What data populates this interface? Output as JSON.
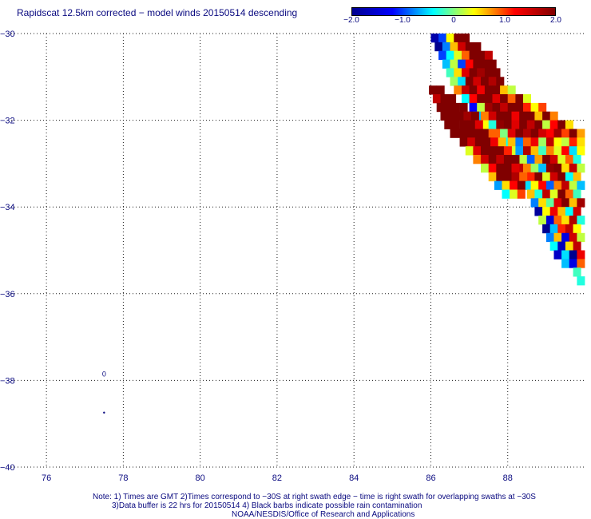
{
  "title": "Rapidscat 12.5km corrected − model winds 20150514 descending",
  "colorbar": {
    "min": -2.0,
    "max": 2.0,
    "tick_labels": [
      "−2.0",
      "−1.0",
      "0",
      "1.0",
      "2.0"
    ],
    "tick_values": [
      -2.0,
      -1.0,
      0,
      1.0,
      2.0
    ],
    "colors": [
      "#00008f",
      "#0000ff",
      "#00ffff",
      "#ffff00",
      "#ff0000",
      "#800000"
    ]
  },
  "notes": {
    "line1": "Note: 1) Times are GMT 2)Times correspond to −30S at right swath edge − time is right swath for overlapping swaths at −30S",
    "line2": "3)Data buffer is 22 hrs for 20150514 4) Black barbs indicate possible rain contamination",
    "line3": "NOAA/NESDIS/Office of Research and Applications"
  },
  "chart_data": {
    "type": "heatmap",
    "title": "Rapidscat 12.5km corrected − model winds 20150514 descending",
    "xlim": [
      75,
      90
    ],
    "ylim": [
      -40,
      -30
    ],
    "x_ticks": [
      76,
      78,
      80,
      82,
      84,
      86,
      88
    ],
    "y_ticks": [
      -30,
      -32,
      -34,
      -36,
      -38,
      -40
    ],
    "x_tick_labels": [
      "76",
      "78",
      "80",
      "82",
      "84",
      "86",
      "88"
    ],
    "y_tick_labels": [
      "−30",
      "−32",
      "−34",
      "−36",
      "−38",
      "−40"
    ],
    "grid": "dotted",
    "value_range": [
      -2.0,
      2.0
    ],
    "swaths": [
      {
        "name": "upper swath",
        "rows": [
          {
            "y": -30.1,
            "x_start": 86.0,
            "values": [
              -1.8,
              -1.0,
              0.4,
              2.0,
              2.0
            ]
          },
          {
            "y": -30.3,
            "x_start": 86.1,
            "values": [
              -2.0,
              -0.8,
              0.6,
              1.5,
              2.0,
              2.0
            ]
          },
          {
            "y": -30.5,
            "x_start": 86.2,
            "values": [
              -1.0,
              -0.4,
              0.3,
              0.9,
              2.0,
              2.0,
              1.6
            ]
          },
          {
            "y": -30.7,
            "x_start": 86.3,
            "values": [
              -0.6,
              0.2,
              -1.0,
              1.2,
              2.0,
              2.0,
              2.0
            ]
          },
          {
            "y": -30.9,
            "x_start": 86.4,
            "values": [
              -0.2,
              0.5,
              1.4,
              2.0,
              1.8,
              2.0,
              2.0
            ]
          },
          {
            "y": -31.1,
            "x_start": 86.5,
            "values": [
              0.1,
              -0.5,
              2.0,
              1.5,
              2.0,
              1.7,
              2.0
            ]
          },
          {
            "y": -31.3,
            "x_start": 86.6,
            "values": [
              0.8,
              1.6,
              2.0,
              1.3,
              2.0,
              2.0,
              0.6,
              0.2
            ]
          },
          {
            "y": -31.5,
            "x_start": 86.8,
            "values": [
              -0.4,
              1.2,
              2.0,
              2.0,
              1.4,
              2.0,
              0.9,
              2.0,
              0.3
            ]
          },
          {
            "y": -31.7,
            "x_start": 87.0,
            "values": [
              -1.2,
              0.2,
              1.8,
              2.0,
              1.6,
              2.0,
              2.0,
              1.1,
              0.4,
              1.0
            ]
          },
          {
            "y": -31.9,
            "x_start": 87.1,
            "values": [
              -0.6,
              0.8,
              1.5,
              2.0,
              2.0,
              1.3,
              2.0,
              2.0,
              0.6,
              2.0,
              0.8
            ]
          },
          {
            "y": -32.1,
            "x_start": 87.3,
            "values": [
              0.4,
              -0.3,
              1.9,
              2.0,
              1.4,
              2.0,
              1.6,
              2.0,
              0.2,
              1.2,
              2.0,
              0.5
            ]
          },
          {
            "y": -32.3,
            "x_start": 87.6,
            "values": [
              0.9,
              0.0,
              1.4,
              2.0,
              1.7,
              2.0,
              1.5,
              1.2,
              1.8,
              1.0,
              2.0,
              0.7,
              1.3
            ]
          },
          {
            "y": -32.5,
            "x_start": 87.8,
            "values": [
              -0.4,
              0.6,
              -0.8,
              0.9,
              1.3,
              0.1,
              1.6,
              0.4,
              0.2,
              1.1,
              0.5,
              -0.1,
              2.0
            ]
          },
          {
            "y": -32.7,
            "x_start": 88.0,
            "values": [
              0.3,
              -0.7,
              1.7,
              0.6,
              -0.2,
              0.8,
              0.3,
              1.2,
              -0.5,
              0.4,
              1.8,
              2.0
            ]
          },
          {
            "y": -32.9,
            "x_start": 88.1,
            "values": [
              1.4,
              0.2,
              -0.9,
              0.7,
              2.0,
              1.5,
              0.3,
              0.9,
              -0.3,
              0.6,
              1.4
            ]
          },
          {
            "y": -33.1,
            "x_start": 88.2,
            "values": [
              1.6,
              0.8,
              0.1,
              -0.6,
              1.9,
              2.0,
              0.5,
              1.6,
              0.2,
              1.9
            ]
          },
          {
            "y": -33.3,
            "x_start": 88.3,
            "values": [
              0.2,
              1.1,
              2.0,
              0.3,
              1.5,
              2.0,
              -0.4,
              0.6,
              1.3,
              0.7
            ]
          },
          {
            "y": -33.5,
            "x_start": 88.4,
            "values": [
              -0.5,
              0.4,
              1.2,
              -0.9,
              0.8,
              1.6,
              0.2,
              -0.6,
              0.4
            ]
          },
          {
            "y": -33.7,
            "x_start": 88.5,
            "values": [
              0.6,
              -0.3,
              1.6,
              0.3,
              2.0,
              0.9,
              -0.2,
              1.1,
              0.5
            ]
          },
          {
            "y": -33.9,
            "x_start": 88.6,
            "values": [
              -0.8,
              0.5,
              -0.1,
              1.4,
              2.0,
              0.6,
              1.8,
              0.2,
              -0.6
            ]
          },
          {
            "y": -34.1,
            "x_start": 88.7,
            "values": [
              -1.9,
              0.4,
              1.3,
              0.6,
              -0.4,
              1.5,
              2.0,
              0.3,
              -0.9
            ]
          },
          {
            "y": -34.3,
            "x_start": 88.8,
            "values": [
              0.2,
              -1.5,
              0.9,
              0.5,
              1.7,
              -0.3,
              0.8,
              1.6
            ]
          },
          {
            "y": -34.5,
            "x_start": 88.9,
            "values": [
              -2.0,
              -0.6,
              1.1,
              1.6,
              0.4,
              -1.0,
              1.4,
              2.0
            ]
          },
          {
            "y": -34.7,
            "x_start": 89.0,
            "values": [
              -0.8,
              0.6,
              -1.4,
              1.5,
              0.2,
              1.9,
              2.0
            ]
          },
          {
            "y": -34.9,
            "x_start": 89.1,
            "values": [
              -0.4,
              -1.7,
              0.5,
              1.6,
              -1.0,
              0.8,
              2.0
            ]
          },
          {
            "y": -35.1,
            "x_start": 89.2,
            "values": [
              -1.6,
              -0.5,
              -2.0,
              1.3,
              1.8
            ]
          },
          {
            "y": -35.3,
            "x_start": 89.4,
            "values": [
              -0.6,
              -1.4,
              0.9,
              1.6
            ]
          },
          {
            "y": -35.5,
            "x_start": 89.7,
            "values": [
              -0.2,
              0.8
            ]
          },
          {
            "y": -35.7,
            "x_start": 89.8,
            "values": [
              -0.3
            ]
          }
        ]
      },
      {
        "name": "lower swath",
        "rows": [
          {
            "y": -31.3,
            "x_start": 85.95,
            "values": [
              2.0,
              2.0
            ]
          },
          {
            "y": -31.5,
            "x_start": 86.05,
            "values": [
              1.6,
              2.0,
              2.0
            ]
          },
          {
            "y": -31.7,
            "x_start": 86.15,
            "values": [
              2.0,
              2.0,
              2.0,
              2.0
            ]
          },
          {
            "y": -31.9,
            "x_start": 86.25,
            "values": [
              2.0,
              2.0,
              2.0,
              1.8,
              2.0
            ]
          },
          {
            "y": -32.1,
            "x_start": 86.35,
            "values": [
              2.0,
              2.0,
              2.0,
              2.0,
              1.4
            ]
          },
          {
            "y": -32.3,
            "x_start": 86.5,
            "values": [
              2.0,
              2.0,
              2.0,
              2.0,
              2.0,
              0.9
            ]
          },
          {
            "y": -32.5,
            "x_start": 86.75,
            "values": [
              2.0,
              1.5,
              2.0,
              2.0,
              1.3,
              0.6
            ]
          },
          {
            "y": -32.7,
            "x_start": 86.9,
            "values": [
              0.3,
              1.4,
              2.0,
              2.0,
              2.0,
              1.1
            ]
          },
          {
            "y": -32.9,
            "x_start": 87.1,
            "values": [
              0.8,
              1.5,
              2.0,
              1.6,
              2.0,
              2.0
            ]
          },
          {
            "y": -33.1,
            "x_start": 87.3,
            "values": [
              0.2,
              1.2,
              2.0,
              2.0,
              1.4
            ]
          },
          {
            "y": -33.3,
            "x_start": 87.5,
            "values": [
              0.6,
              2.0,
              2.0,
              1.7,
              0.9
            ]
          },
          {
            "y": -33.5,
            "x_start": 87.65,
            "values": [
              -0.7,
              0.5,
              1.2,
              2.0
            ]
          },
          {
            "y": -33.7,
            "x_start": 87.85,
            "values": [
              -0.4,
              0.3,
              1.0
            ]
          }
        ]
      }
    ],
    "annotations": [
      {
        "x": 77.5,
        "y": -37.85,
        "text": "0"
      },
      {
        "x": 77.5,
        "y": -38.75,
        "text": "•"
      }
    ]
  }
}
